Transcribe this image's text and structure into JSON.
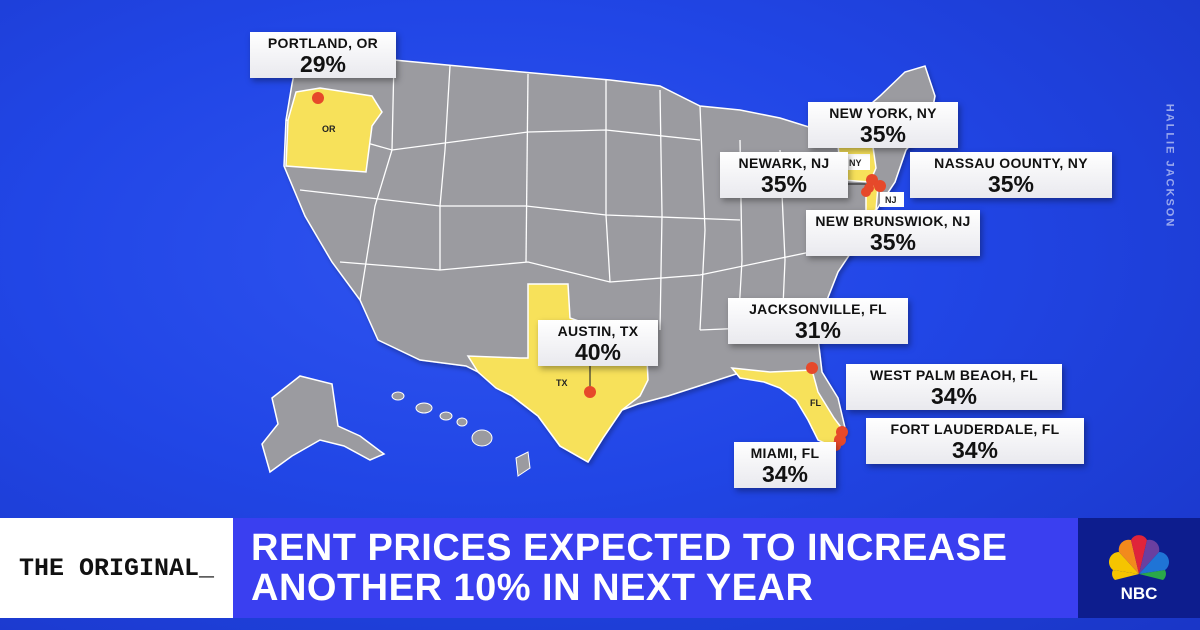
{
  "watermark": "HALLIE JACKSON",
  "state_tags": {
    "or": "OR",
    "tx": "TX",
    "fl": "FL",
    "ny": "NY",
    "nj": "NJ"
  },
  "callouts": [
    {
      "city": "PORTLAND, OR",
      "pct": "29%"
    },
    {
      "city": "NEW YORK, NY",
      "pct": "35%"
    },
    {
      "city": "NEWARK, NJ",
      "pct": "35%"
    },
    {
      "city": "NASSAU OOUNTY, NY",
      "pct": "35%"
    },
    {
      "city": "NEW BRUNSWIOK, NJ",
      "pct": "35%"
    },
    {
      "city": "AUSTIN, TX",
      "pct": "40%"
    },
    {
      "city": "JACKSONVILLE, FL",
      "pct": "31%"
    },
    {
      "city": "WEST PALM BEAOH, FL",
      "pct": "34%"
    },
    {
      "city": "FORT LAUDERDALE, FL",
      "pct": "34%"
    },
    {
      "city": "MIAMI, FL",
      "pct": "34%"
    }
  ],
  "lower_third": {
    "show": "THE ORIGINAL_",
    "headline": "RENT PRICES EXPECTED TO INCREASE ANOTHER 10% IN NEXT YEAR",
    "logo_text": "NBC"
  },
  "colors": {
    "highlight_state": "#f7e15a",
    "base_state": "#9b9ba0",
    "marker": "#e6492a",
    "headline_bg": "#3a3ff0",
    "logo_bg": "#0d1d8e"
  }
}
